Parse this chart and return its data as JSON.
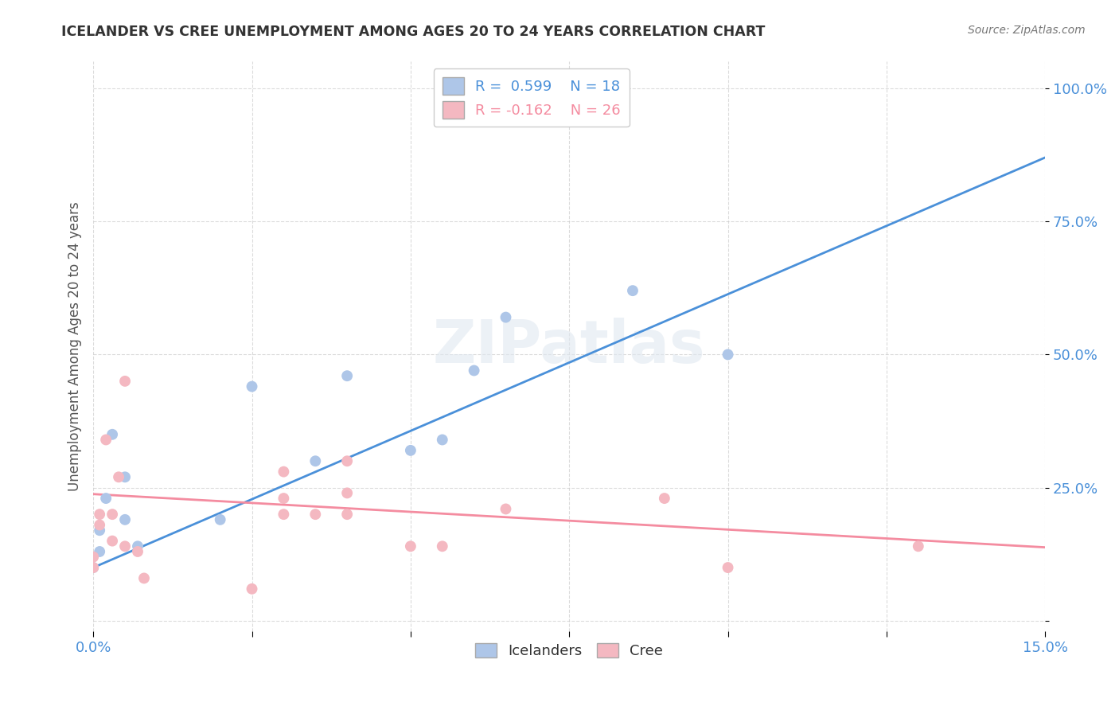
{
  "title": "ICELANDER VS CREE UNEMPLOYMENT AMONG AGES 20 TO 24 YEARS CORRELATION CHART",
  "source": "Source: ZipAtlas.com",
  "ylabel": "Unemployment Among Ages 20 to 24 years",
  "xlim": [
    0.0,
    0.15
  ],
  "ylim": [
    -0.02,
    1.05
  ],
  "xticks": [
    0.0,
    0.025,
    0.05,
    0.075,
    0.1,
    0.125,
    0.15
  ],
  "yticks": [
    0.0,
    0.25,
    0.5,
    0.75,
    1.0
  ],
  "ytick_labels": [
    "",
    "25.0%",
    "50.0%",
    "75.0%",
    "100.0%"
  ],
  "xtick_labels": [
    "0.0%",
    "",
    "",
    "",
    "",
    "",
    "15.0%"
  ],
  "legend_icelanders_R": "0.599",
  "legend_icelanders_N": "18",
  "legend_cree_R": "-0.162",
  "legend_cree_N": "26",
  "icelander_color": "#aec6e8",
  "cree_color": "#f4b8c1",
  "icelander_line_color": "#4a90d9",
  "cree_line_color": "#f48ca0",
  "watermark": "ZIPatlas",
  "icelanders_x": [
    0.0,
    0.001,
    0.001,
    0.002,
    0.003,
    0.005,
    0.005,
    0.007,
    0.02,
    0.025,
    0.035,
    0.04,
    0.05,
    0.055,
    0.06,
    0.065,
    0.085,
    0.1
  ],
  "icelanders_y": [
    0.1,
    0.13,
    0.17,
    0.23,
    0.35,
    0.19,
    0.27,
    0.14,
    0.19,
    0.44,
    0.3,
    0.46,
    0.32,
    0.34,
    0.47,
    0.57,
    0.62,
    0.5
  ],
  "cree_x": [
    0.0,
    0.0,
    0.001,
    0.001,
    0.002,
    0.003,
    0.003,
    0.004,
    0.005,
    0.005,
    0.007,
    0.008,
    0.025,
    0.03,
    0.03,
    0.03,
    0.035,
    0.04,
    0.04,
    0.04,
    0.05,
    0.055,
    0.065,
    0.09,
    0.1,
    0.13
  ],
  "cree_y": [
    0.1,
    0.12,
    0.18,
    0.2,
    0.34,
    0.15,
    0.2,
    0.27,
    0.14,
    0.45,
    0.13,
    0.08,
    0.06,
    0.2,
    0.23,
    0.28,
    0.2,
    0.2,
    0.24,
    0.3,
    0.14,
    0.14,
    0.21,
    0.23,
    0.1,
    0.14
  ],
  "icelander_trend_x": [
    0.0,
    0.15
  ],
  "icelander_trend_y": [
    0.1,
    0.87
  ],
  "cree_trend_x": [
    0.0,
    0.15
  ],
  "cree_trend_y": [
    0.238,
    0.138
  ]
}
